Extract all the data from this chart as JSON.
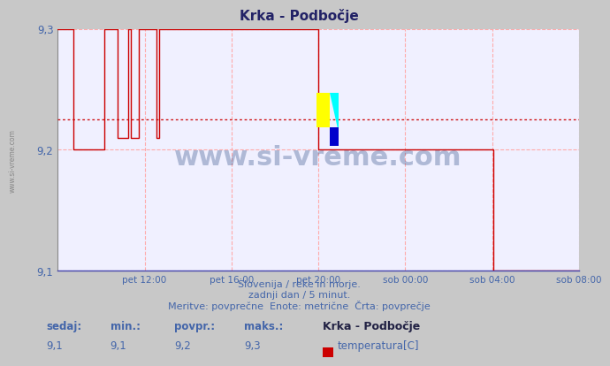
{
  "title": "Krka - Podbočje",
  "bg_color": "#c8c8c8",
  "plot_bg_color": "#f0f0ff",
  "line_color": "#cc0000",
  "avg_line_color": "#cc0000",
  "grid_color": "#ffaaaa",
  "text_color": "#4466aa",
  "ylim": [
    9.1,
    9.3
  ],
  "ytick_vals": [
    9.1,
    9.2,
    9.3
  ],
  "ytick_labels": [
    "9,1",
    "9,2",
    "9,3"
  ],
  "avg_value": 9.225,
  "xtick_positions": [
    0.1667,
    0.3333,
    0.5,
    0.6667,
    0.8333,
    1.0
  ],
  "xtick_labels": [
    "pet 12:00",
    "pet 16:00",
    "pet 20:00",
    "sob 00:00",
    "sob 04:00",
    "sob 08:00"
  ],
  "footer_line1": "Slovenija / reke in morje.",
  "footer_line2": "zadnji dan / 5 minut.",
  "footer_line3": "Meritve: povprečne  Enote: metrične  Črta: povprečje",
  "stat_labels": [
    "sedaj:",
    "min.:",
    "povpr.:",
    "maks.:"
  ],
  "stat_values": [
    "9,1",
    "9,1",
    "9,2",
    "9,3"
  ],
  "legend_title": "Krka - Podbočje",
  "legend_item": "temperatura[C]",
  "legend_color": "#cc0000",
  "watermark": "www.si-vreme.com",
  "side_label": "www.si-vreme.com",
  "x_data": [
    0.0,
    0.03,
    0.03,
    0.09,
    0.09,
    0.115,
    0.115,
    0.135,
    0.135,
    0.14,
    0.14,
    0.155,
    0.155,
    0.19,
    0.19,
    0.195,
    0.195,
    0.5,
    0.5,
    0.667,
    0.667,
    0.833,
    0.833,
    0.836,
    0.836,
    1.0
  ],
  "y_data": [
    9.3,
    9.3,
    9.2,
    9.2,
    9.3,
    9.3,
    9.21,
    9.21,
    9.3,
    9.3,
    9.21,
    9.21,
    9.3,
    9.3,
    9.21,
    9.21,
    9.3,
    9.3,
    9.2,
    9.2,
    9.2,
    9.2,
    9.2,
    9.2,
    9.1,
    9.1
  ]
}
